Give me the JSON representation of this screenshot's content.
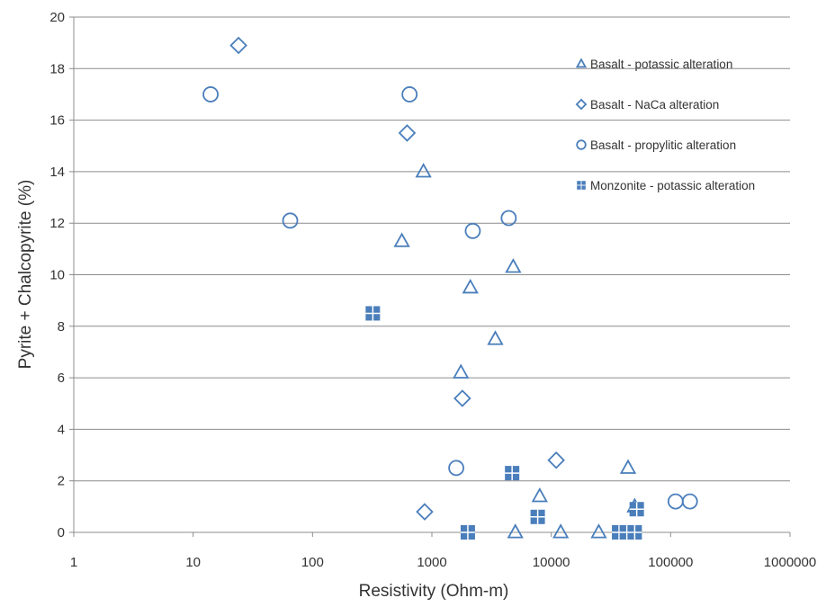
{
  "chart_data": {
    "type": "scatter",
    "title": "",
    "xlabel": "Resistivity (Ohm-m)",
    "ylabel": "Pyrite + Chalcopyrite (%)",
    "xscale": "log",
    "xlim": [
      1,
      1000000
    ],
    "ylim": [
      0,
      20
    ],
    "x_ticks": [
      1,
      10,
      100,
      1000,
      10000,
      100000,
      1000000
    ],
    "y_ticks": [
      0,
      2,
      4,
      6,
      8,
      10,
      12,
      14,
      16,
      18,
      20
    ],
    "grid": "horizontal",
    "legend_position": "top-right",
    "series": [
      {
        "name": "Basalt - potassic alteration",
        "marker": "triangle",
        "color": "#4a7ebb",
        "points": [
          [
            850,
            14.0
          ],
          [
            560,
            11.3
          ],
          [
            4800,
            10.3
          ],
          [
            2100,
            9.5
          ],
          [
            3400,
            7.5
          ],
          [
            1750,
            6.2
          ],
          [
            8000,
            1.4
          ],
          [
            44000,
            2.5
          ],
          [
            50000,
            1.0
          ],
          [
            5000,
            0
          ],
          [
            12000,
            0
          ],
          [
            25000,
            0
          ]
        ]
      },
      {
        "name": "Basalt - NaCa alteration",
        "marker": "diamond",
        "color": "#4a7ebb",
        "points": [
          [
            24,
            18.9
          ],
          [
            620,
            15.5
          ],
          [
            1800,
            5.2
          ],
          [
            11000,
            2.8
          ],
          [
            870,
            0.8
          ]
        ]
      },
      {
        "name": "Basalt - propylitic alteration",
        "marker": "circle",
        "color": "#4a7ebb",
        "points": [
          [
            14,
            17.0
          ],
          [
            650,
            17.0
          ],
          [
            65,
            12.1
          ],
          [
            4400,
            12.2
          ],
          [
            2200,
            11.7
          ],
          [
            1600,
            2.5
          ],
          [
            110000,
            1.2
          ],
          [
            145000,
            1.2
          ]
        ]
      },
      {
        "name": "Monzonite - potassic alteration",
        "marker": "square-grid",
        "color": "#4a7ebb",
        "points": [
          [
            320,
            8.5
          ],
          [
            4700,
            2.3
          ],
          [
            7700,
            0.6
          ],
          [
            52000,
            0.9
          ],
          [
            2000,
            0
          ],
          [
            37000,
            0
          ],
          [
            43000,
            0
          ],
          [
            50000,
            0
          ]
        ]
      }
    ]
  }
}
